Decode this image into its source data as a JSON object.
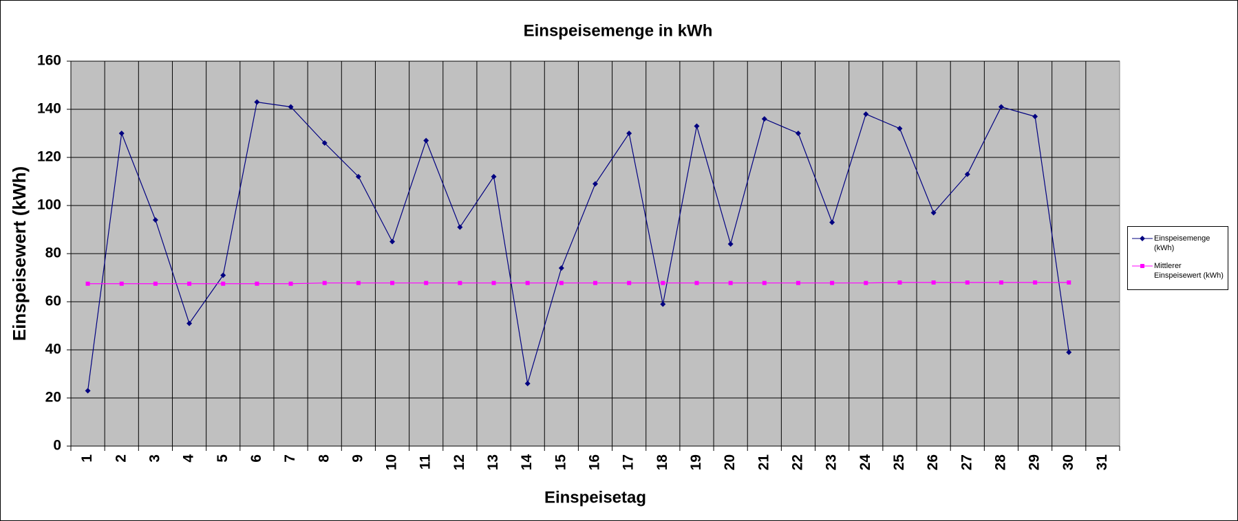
{
  "chart_data": {
    "type": "line",
    "title": "Einspeisemenge in kWh",
    "x_label": "Einspeisetag",
    "y_label": "Einspeisewert  (kWh)",
    "categories": [
      "1",
      "2",
      "3",
      "4",
      "5",
      "6",
      "7",
      "8",
      "9",
      "10",
      "11",
      "12",
      "13",
      "14",
      "15",
      "16",
      "17",
      "18",
      "19",
      "20",
      "21",
      "22",
      "23",
      "24",
      "25",
      "26",
      "27",
      "28",
      "29",
      "30",
      "31"
    ],
    "series": [
      {
        "name": "Einspeisemenge (kWh)",
        "color": "#000080",
        "marker": "diamond",
        "values": [
          23,
          130,
          94,
          51,
          71,
          143,
          141,
          126,
          112,
          85,
          127,
          91,
          112,
          26,
          74,
          109,
          130,
          59,
          133,
          84,
          136,
          130,
          93,
          138,
          132,
          97,
          113,
          141,
          137,
          39,
          null
        ]
      },
      {
        "name": "Mittlerer Einspeisewert (kWh)",
        "color": "#ff00ff",
        "marker": "square",
        "values": [
          67.5,
          67.5,
          67.5,
          67.5,
          67.5,
          67.5,
          67.5,
          67.8,
          67.8,
          67.8,
          67.8,
          67.8,
          67.8,
          67.8,
          67.8,
          67.8,
          67.8,
          67.8,
          67.8,
          67.8,
          67.8,
          67.8,
          67.8,
          67.8,
          68,
          68,
          68,
          68,
          68,
          68,
          null
        ]
      }
    ],
    "ylim": [
      0,
      160
    ],
    "yticks": [
      0,
      20,
      40,
      60,
      80,
      100,
      120,
      140,
      160
    ],
    "grid": true,
    "legend": "right"
  }
}
